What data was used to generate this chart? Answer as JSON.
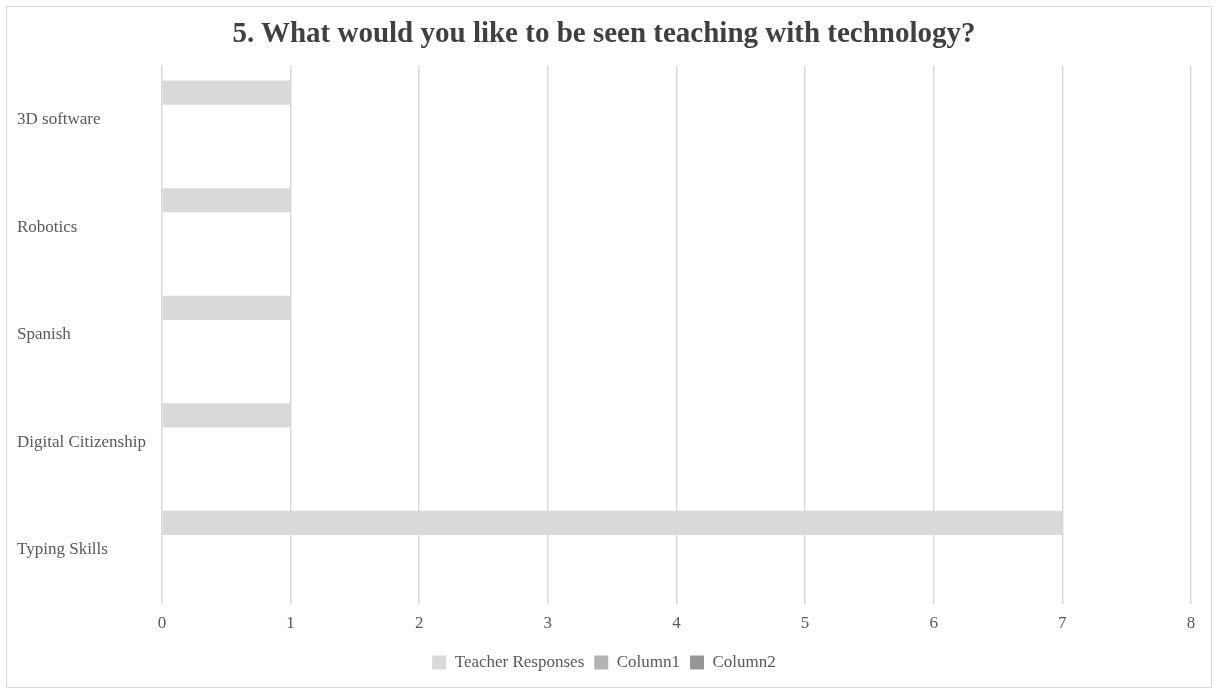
{
  "chart_data": {
    "type": "bar",
    "orientation": "horizontal",
    "title": "5. What would you like to be seen teaching with technology?",
    "categories": [
      "3D software",
      "Robotics",
      "Spanish",
      "Digital Citizenship",
      "Typing Skills"
    ],
    "series": [
      {
        "name": "Teacher Responses",
        "color": "#d9d9d9",
        "values": [
          1,
          1,
          1,
          1,
          7
        ]
      },
      {
        "name": "Column1",
        "color": "#b3b3b3",
        "values": [
          null,
          null,
          null,
          null,
          null
        ]
      },
      {
        "name": "Column2",
        "color": "#969696",
        "values": [
          null,
          null,
          null,
          null,
          null
        ]
      }
    ],
    "xlim": [
      0,
      8
    ],
    "xticks": [
      0,
      1,
      2,
      3,
      4,
      5,
      6,
      7,
      8
    ],
    "grid": "x",
    "legend": "bottom"
  }
}
